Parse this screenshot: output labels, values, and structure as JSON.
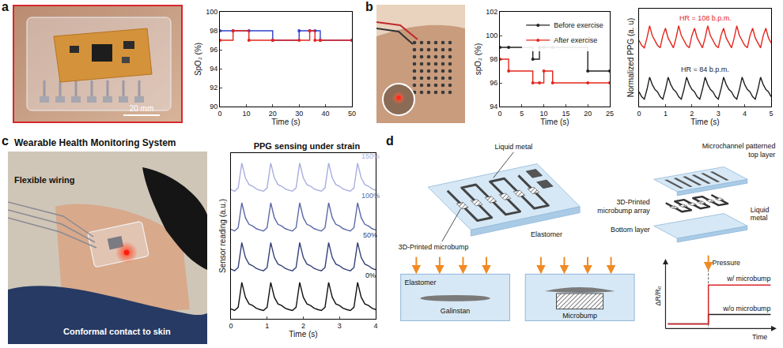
{
  "figure": {
    "panels": {
      "a": {
        "letter": "a",
        "scale_bar": "20 mm"
      },
      "b": {
        "letter": "b"
      },
      "c": {
        "letter": "c",
        "heading": "Wearable Health Monitoring System",
        "photo_labels": {
          "wiring": "Flexible wiring",
          "contact": "Conformal contact to skin"
        }
      },
      "d": {
        "letter": "d",
        "diagram": {
          "assembled": {
            "liquid_metal": "Liquid metal",
            "microbump": "3D-Printed microbump",
            "elastomer": "Elastomer"
          },
          "exploded": {
            "top_layer": "Microchannel patterned top layer",
            "microbump_array": "3D-Printed microbump array",
            "liquid_metal": "Liquid metal",
            "bottom_layer": "Bottom layer"
          },
          "cross_section": {
            "elastomer": "Elastomer",
            "galinstan": "Galinstan",
            "microbump": "Microbump"
          },
          "response_plot": {
            "y_label": "ΔR/R₀",
            "x_label": "Time",
            "event": "Pressure",
            "with_bump": "w/ microbump",
            "without_bump": "w/o microbump"
          }
        }
      }
    }
  },
  "chart_data": [
    {
      "type": "line",
      "x_label": "Time (s)",
      "y_label": "SpO₂ (%)",
      "x": [
        0,
        5,
        11,
        20,
        30,
        34,
        36,
        38,
        50
      ],
      "series": [
        {
          "color": "#2f3fd0",
          "marker": "circle",
          "line_style": "step",
          "values": [
            98,
            98,
            98,
            97,
            98,
            98,
            98,
            97,
            97
          ]
        },
        {
          "color": "#e3261c",
          "marker": "circle",
          "line_style": "step",
          "values": [
            97,
            98,
            97,
            97,
            97,
            98,
            97,
            97,
            97
          ]
        }
      ],
      "xlim": [
        0,
        50
      ],
      "xticks": [
        0,
        10,
        20,
        30,
        40,
        50
      ],
      "ylim": [
        90,
        100
      ],
      "yticks": [
        90,
        92,
        94,
        96,
        98,
        100
      ]
    },
    {
      "type": "line",
      "x_label": "Time (s)",
      "y_label": "spO₂ (%)",
      "legend": "upper right",
      "x": [
        0,
        2,
        7.5,
        9,
        10,
        12,
        20,
        25
      ],
      "series": [
        {
          "name": "Before exercise",
          "color": "#222222",
          "marker": "circle",
          "line_style": "step",
          "values": [
            99,
            99,
            98,
            99,
            99,
            99,
            97,
            97
          ]
        },
        {
          "name": "After exercise",
          "color": "#e3261c",
          "marker": "circle",
          "line_style": "step",
          "values": [
            98,
            97,
            96,
            96,
            97,
            96,
            96,
            96
          ]
        }
      ],
      "xlim": [
        0,
        25
      ],
      "xticks": [
        0,
        5,
        10,
        15,
        20,
        25
      ],
      "ylim": [
        94,
        102
      ],
      "yticks": [
        94,
        96,
        98,
        100,
        102
      ]
    },
    {
      "type": "line",
      "x_label": "Time (s)",
      "y_label": "Normalized PPG (a. u)",
      "tick_labels": "x",
      "x": [
        0,
        0.1,
        0.2,
        0.3,
        0.4,
        0.5,
        0.6,
        0.7,
        0.8,
        0.9,
        1,
        1.1,
        1.2,
        1.3,
        1.4,
        1.5,
        1.6,
        1.7,
        1.8,
        1.9,
        2,
        2.1,
        2.2,
        2.3,
        2.4,
        2.5,
        2.6,
        2.7,
        2.8,
        2.9,
        3,
        3.1,
        3.2,
        3.3,
        3.4,
        3.5,
        3.6,
        3.7,
        3.8,
        3.9,
        4,
        4.1,
        4.2,
        4.3,
        4.4,
        4.5,
        4.6,
        4.7,
        4.8,
        4.9,
        5
      ],
      "series": [
        {
          "color": "#e3261c",
          "values": [
            2.5,
            2.3,
            2.2,
            2.6,
            3.1,
            2.7,
            2.5,
            2.3,
            2.2,
            2.7,
            3.0,
            2.6,
            2.4,
            2.2,
            2.6,
            3.1,
            2.7,
            2.5,
            2.3,
            2.2,
            2.7,
            3.0,
            2.6,
            2.4,
            2.2,
            2.6,
            3.1,
            2.7,
            2.5,
            2.3,
            2.2,
            2.7,
            3.0,
            2.6,
            2.4,
            2.2,
            2.6,
            3.1,
            2.7,
            2.5,
            2.3,
            2.2,
            2.7,
            3.0,
            2.6,
            2.4,
            2.2,
            2.7,
            3.0,
            2.6,
            2.4
          ]
        },
        {
          "color": "#222222",
          "values": [
            0.4,
            0.2,
            0.1,
            0.5,
            1,
            0.7,
            0.5,
            0.4,
            0.2,
            0.1,
            0.5,
            1,
            0.7,
            0.5,
            0.4,
            0.2,
            0.1,
            0.5,
            1,
            0.7,
            0.5,
            0.4,
            0.2,
            0.1,
            0.5,
            1,
            0.7,
            0.5,
            0.4,
            0.2,
            0.1,
            0.5,
            1,
            0.7,
            0.5,
            0.4,
            0.2,
            0.1,
            0.5,
            1,
            0.7,
            0.5,
            0.4,
            0.2,
            0.1,
            0.5,
            1,
            0.7,
            0.5,
            0.4,
            0.2
          ]
        }
      ],
      "annotations": [
        {
          "text": "HR = 108 b.p.m.",
          "x": 2.5,
          "y": 3.2,
          "color": "#e3261c"
        },
        {
          "text": "HR = 84 b.p.m.",
          "x": 2.5,
          "y": 1.1,
          "color": "#222222"
        }
      ],
      "xlim": [
        0,
        5
      ],
      "xticks": [
        0,
        1,
        2,
        3,
        4,
        5
      ],
      "ylim": [
        -0.2,
        3.8
      ]
    },
    {
      "type": "line",
      "title": "PPG sensing under strain",
      "x_label": "Time (s)",
      "y_label": "Sensor reading (a.u.)",
      "tick_labels": "x",
      "x": [
        0,
        0.1,
        0.2,
        0.3,
        0.4,
        0.5,
        0.6,
        0.7,
        0.8,
        0.9,
        1,
        1.1,
        1.2,
        1.3,
        1.4,
        1.5,
        1.6,
        1.7,
        1.8,
        1.9,
        2,
        2.1,
        2.2,
        2.3,
        2.4,
        2.5,
        2.6,
        2.7,
        2.8,
        2.9,
        3,
        3.1,
        3.2,
        3.3,
        3.4,
        3.5,
        3.6,
        3.7,
        3.8,
        3.9,
        4
      ],
      "series": [
        {
          "color": "#a9aee0",
          "values": [
            3.7,
            3.65,
            3.75,
            4.5,
            4.05,
            3.85,
            3.8,
            3.72,
            3.68,
            3.65,
            3.75,
            4.5,
            4.05,
            3.85,
            3.8,
            3.72,
            3.68,
            3.65,
            3.75,
            4.5,
            4.05,
            3.85,
            3.8,
            3.72,
            3.68,
            3.65,
            3.75,
            4.5,
            4.05,
            3.85,
            3.8,
            3.72,
            3.68,
            3.65,
            3.75,
            4.5,
            4.05,
            3.85,
            3.8,
            3.72,
            3.68
          ]
        },
        {
          "color": "#5a68a8",
          "values": [
            2.5,
            2.45,
            2.55,
            3.3,
            2.85,
            2.65,
            2.6,
            2.52,
            2.48,
            2.45,
            2.55,
            3.3,
            2.85,
            2.65,
            2.6,
            2.52,
            2.48,
            2.45,
            2.55,
            3.3,
            2.85,
            2.65,
            2.6,
            2.52,
            2.48,
            2.45,
            2.55,
            3.3,
            2.85,
            2.65,
            2.6,
            2.52,
            2.48,
            2.45,
            2.55,
            3.3,
            2.85,
            2.65,
            2.6,
            2.52,
            2.48
          ]
        },
        {
          "color": "#35407a",
          "values": [
            1.3,
            1.25,
            1.35,
            2.1,
            1.65,
            1.45,
            1.4,
            1.32,
            1.28,
            1.25,
            1.35,
            2.1,
            1.65,
            1.45,
            1.4,
            1.32,
            1.28,
            1.25,
            1.35,
            2.1,
            1.65,
            1.45,
            1.4,
            1.32,
            1.28,
            1.25,
            1.35,
            2.1,
            1.65,
            1.45,
            1.4,
            1.32,
            1.28,
            1.25,
            1.35,
            2.1,
            1.65,
            1.45,
            1.4,
            1.32,
            1.28
          ]
        },
        {
          "color": "#111111",
          "values": [
            0.1,
            0.05,
            0.15,
            0.9,
            0.45,
            0.25,
            0.2,
            0.12,
            0.08,
            0.05,
            0.15,
            0.9,
            0.45,
            0.25,
            0.2,
            0.12,
            0.08,
            0.05,
            0.15,
            0.9,
            0.45,
            0.25,
            0.2,
            0.12,
            0.08,
            0.05,
            0.15,
            0.9,
            0.45,
            0.25,
            0.2,
            0.12,
            0.08,
            0.05,
            0.15,
            0.9,
            0.45,
            0.25,
            0.2,
            0.12,
            0.08
          ]
        }
      ],
      "annotations": [
        {
          "text": "150%",
          "x": 3.85,
          "y": 4.55,
          "color": "#a9aee0"
        },
        {
          "text": "100%",
          "x": 3.85,
          "y": 3.35,
          "color": "#5a68a8"
        },
        {
          "text": "50%",
          "x": 3.85,
          "y": 2.15,
          "color": "#35407a"
        },
        {
          "text": "0%",
          "x": 3.85,
          "y": 0.95,
          "color": "#111111"
        }
      ],
      "xlim": [
        0,
        4
      ],
      "xticks": [
        0,
        1,
        2,
        3,
        4
      ],
      "ylim": [
        -0.2,
        4.8
      ]
    }
  ]
}
